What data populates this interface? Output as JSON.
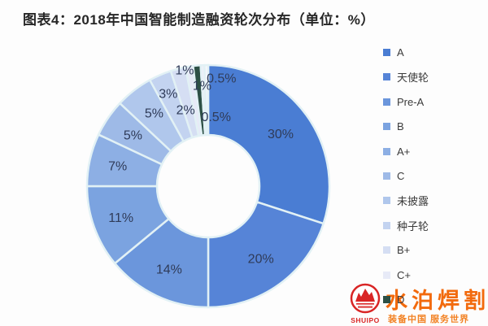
{
  "title": "图表4：2018年中国智能制造融资轮次分布（单位：%）",
  "chart_data": {
    "type": "pie",
    "subtype": "donut",
    "title": "图表4：2018年中国智能制造融资轮次分布（单位：%）",
    "unit": "%",
    "legend_position": "right",
    "start_angle_deg": 0,
    "clockwise": true,
    "slices": [
      {
        "category": "A",
        "value": 30,
        "label": "30%",
        "color": "#4a7dd3"
      },
      {
        "category": "天使轮",
        "value": 20,
        "label": "20%",
        "color": "#5684d7"
      },
      {
        "category": "Pre-A",
        "value": 14,
        "label": "14%",
        "color": "#6b96dc"
      },
      {
        "category": "B",
        "value": 11,
        "label": "11%",
        "color": "#7ba3e0"
      },
      {
        "category": "A+",
        "value": 7,
        "label": "7%",
        "color": "#8dafe4"
      },
      {
        "category": "C",
        "value": 5,
        "label": "5%",
        "color": "#9ebae7"
      },
      {
        "category": "未披露",
        "value": 5,
        "label": "5%",
        "color": "#b0c7ec"
      },
      {
        "category": "种子轮",
        "value": 3,
        "label": "3%",
        "color": "#c3d3f0"
      },
      {
        "category": "B+",
        "value": 2,
        "label": "2%",
        "color": "#d5def3"
      },
      {
        "category": "C+",
        "value": 1,
        "label": "1%",
        "color": "#e7eaf7"
      },
      {
        "category": "D",
        "value": 1,
        "label": "1%",
        "color": "#2d5045"
      },
      {
        "category": "",
        "value": 0.5,
        "label": "0.5%",
        "color": "#edf0f8"
      },
      {
        "category": "",
        "value": 0.5,
        "label": "0.5%",
        "color": "#f5f6fb"
      }
    ],
    "label_color": "#2f3b58",
    "separator_color": "#e2f1f5"
  },
  "watermark": {
    "brand": "水泊焊割",
    "brand_en": "SHUIPO",
    "tagline": "装备中国 服务世界",
    "brand_color": "#f26a0d",
    "logo_color": "#d92525"
  }
}
